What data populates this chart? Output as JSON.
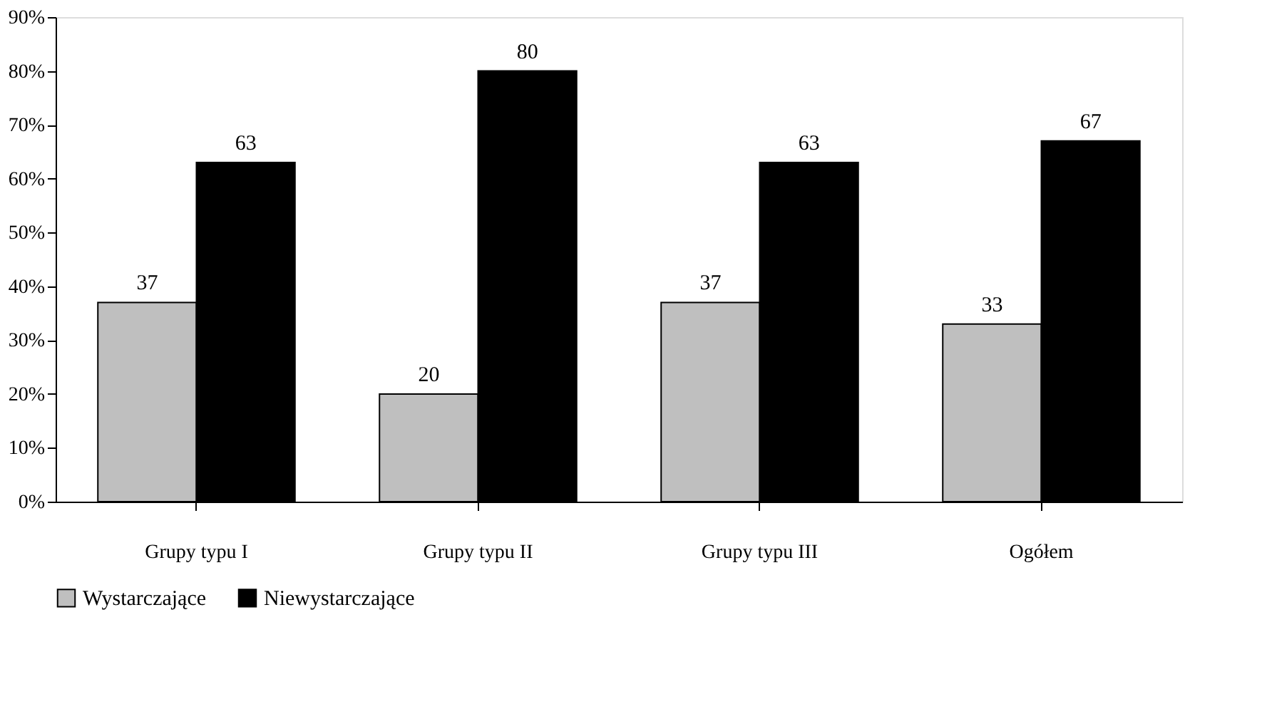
{
  "chart_data": {
    "type": "bar",
    "categories": [
      "Grupy typu I",
      "Grupy typu II",
      "Grupy typu III",
      "Ogółem"
    ],
    "series": [
      {
        "name": "Wystarczające",
        "color": "#bfbfbf",
        "values": [
          37,
          20,
          37,
          33
        ]
      },
      {
        "name": "Niewystarczające",
        "color": "#000000",
        "values": [
          63,
          80,
          63,
          67
        ]
      }
    ],
    "ylim": [
      0,
      90
    ],
    "yticks": [
      {
        "value": 0,
        "label": "0%"
      },
      {
        "value": 10,
        "label": "10%"
      },
      {
        "value": 20,
        "label": "20%"
      },
      {
        "value": 30,
        "label": "30%"
      },
      {
        "value": 40,
        "label": "40%"
      },
      {
        "value": 50,
        "label": "50%"
      },
      {
        "value": 60,
        "label": "60%"
      },
      {
        "value": 70,
        "label": "70%"
      },
      {
        "value": 80,
        "label": "80%"
      },
      {
        "value": 90,
        "label": "90%"
      }
    ],
    "data_labels": true,
    "grid": false,
    "legend": "bottom"
  }
}
